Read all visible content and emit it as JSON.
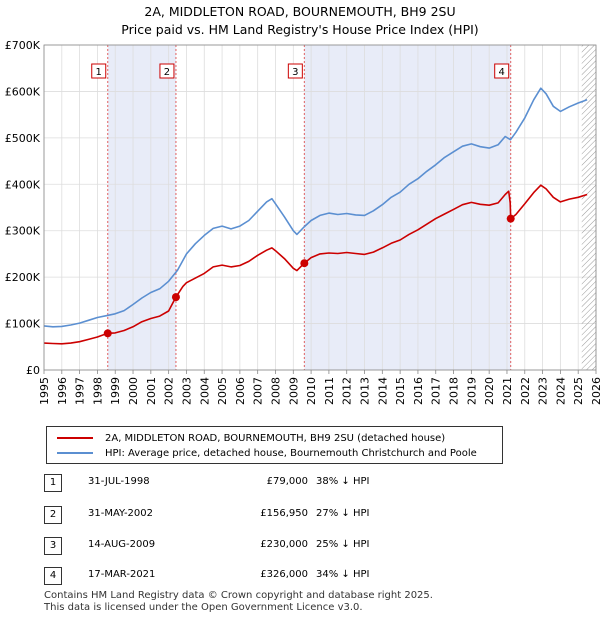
{
  "title_line1": "2A, MIDDLETON ROAD, BOURNEMOUTH, BH9 2SU",
  "title_line2": "Price paid vs. HM Land Registry's House Price Index (HPI)",
  "chart_data": {
    "type": "line",
    "xlim": [
      1995,
      2026
    ],
    "ylim": [
      0,
      700000
    ],
    "yticks": [
      {
        "value": 0,
        "label": "£0"
      },
      {
        "value": 100000,
        "label": "£100K"
      },
      {
        "value": 200000,
        "label": "£200K"
      },
      {
        "value": 300000,
        "label": "£300K"
      },
      {
        "value": 400000,
        "label": "£400K"
      },
      {
        "value": 500000,
        "label": "£500K"
      },
      {
        "value": 600000,
        "label": "£600K"
      },
      {
        "value": 700000,
        "label": "£700K"
      }
    ],
    "xticks": [
      "1995",
      "1996",
      "1997",
      "1998",
      "1999",
      "2000",
      "2001",
      "2002",
      "2003",
      "2004",
      "2005",
      "2006",
      "2007",
      "2008",
      "2009",
      "2010",
      "2011",
      "2012",
      "2013",
      "2014",
      "2015",
      "2016",
      "2017",
      "2018",
      "2019",
      "2020",
      "2021",
      "2022",
      "2023",
      "2024",
      "2025",
      "2026"
    ],
    "grid": true,
    "hatched_from": 2025.2,
    "shaded_ranges": [
      [
        1998.58,
        2002.41
      ],
      [
        2009.62,
        2021.21
      ]
    ],
    "series": [
      {
        "name": "2A, MIDDLETON ROAD, BOURNEMOUTH, BH9 2SU (detached house)",
        "color": "#cc0000",
        "points": [
          [
            1995,
            58000
          ],
          [
            1995.5,
            57000
          ],
          [
            1996,
            56500
          ],
          [
            1996.5,
            58000
          ],
          [
            1997,
            61000
          ],
          [
            1997.5,
            66000
          ],
          [
            1998,
            71000
          ],
          [
            1998.58,
            79000
          ],
          [
            1999,
            80000
          ],
          [
            1999.5,
            85000
          ],
          [
            2000,
            93000
          ],
          [
            2000.5,
            104000
          ],
          [
            2001,
            111000
          ],
          [
            2001.5,
            116000
          ],
          [
            2002,
            127000
          ],
          [
            2002.41,
            156950
          ],
          [
            2002.8,
            180000
          ],
          [
            2003,
            188000
          ],
          [
            2003.5,
            198000
          ],
          [
            2004,
            208000
          ],
          [
            2004.5,
            222000
          ],
          [
            2005,
            226000
          ],
          [
            2005.5,
            222000
          ],
          [
            2006,
            225000
          ],
          [
            2006.5,
            234000
          ],
          [
            2007,
            247000
          ],
          [
            2007.5,
            258000
          ],
          [
            2007.8,
            263000
          ],
          [
            2008,
            257000
          ],
          [
            2008.5,
            240000
          ],
          [
            2009,
            219000
          ],
          [
            2009.2,
            214000
          ],
          [
            2009.62,
            230000
          ],
          [
            2010,
            242000
          ],
          [
            2010.5,
            250000
          ],
          [
            2011,
            252000
          ],
          [
            2011.5,
            251000
          ],
          [
            2012,
            253000
          ],
          [
            2012.5,
            251000
          ],
          [
            2013,
            249000
          ],
          [
            2013.5,
            254000
          ],
          [
            2014,
            263000
          ],
          [
            2014.5,
            273000
          ],
          [
            2015,
            280000
          ],
          [
            2015.5,
            292000
          ],
          [
            2016,
            302000
          ],
          [
            2016.5,
            314000
          ],
          [
            2017,
            326000
          ],
          [
            2017.5,
            336000
          ],
          [
            2018,
            346000
          ],
          [
            2018.5,
            356000
          ],
          [
            2019,
            361000
          ],
          [
            2019.5,
            357000
          ],
          [
            2020,
            355000
          ],
          [
            2020.5,
            360000
          ],
          [
            2020.9,
            378000
          ],
          [
            2021.1,
            385000
          ],
          [
            2021.18,
            360000
          ],
          [
            2021.21,
            326000
          ],
          [
            2021.5,
            335000
          ],
          [
            2022,
            358000
          ],
          [
            2022.5,
            382000
          ],
          [
            2022.9,
            398000
          ],
          [
            2023.2,
            390000
          ],
          [
            2023.6,
            372000
          ],
          [
            2024,
            362000
          ],
          [
            2024.5,
            368000
          ],
          [
            2025,
            372000
          ],
          [
            2025.5,
            378000
          ]
        ]
      },
      {
        "name": "HPI: Average price, detached house, Bournemouth Christchurch and Poole",
        "color": "#5b8fd1",
        "points": [
          [
            1995,
            95000
          ],
          [
            1995.5,
            93000
          ],
          [
            1996,
            94000
          ],
          [
            1996.5,
            97000
          ],
          [
            1997,
            101000
          ],
          [
            1997.5,
            107000
          ],
          [
            1998,
            113000
          ],
          [
            1998.5,
            117000
          ],
          [
            1999,
            121000
          ],
          [
            1999.5,
            128000
          ],
          [
            2000,
            141000
          ],
          [
            2000.5,
            155000
          ],
          [
            2001,
            167000
          ],
          [
            2001.5,
            175000
          ],
          [
            2002,
            191000
          ],
          [
            2002.5,
            215000
          ],
          [
            2003,
            250000
          ],
          [
            2003.5,
            272000
          ],
          [
            2004,
            290000
          ],
          [
            2004.5,
            305000
          ],
          [
            2005,
            310000
          ],
          [
            2005.5,
            304000
          ],
          [
            2006,
            310000
          ],
          [
            2006.5,
            322000
          ],
          [
            2007,
            342000
          ],
          [
            2007.5,
            362000
          ],
          [
            2007.8,
            369000
          ],
          [
            2008,
            358000
          ],
          [
            2008.5,
            330000
          ],
          [
            2009,
            300000
          ],
          [
            2009.2,
            292000
          ],
          [
            2009.6,
            308000
          ],
          [
            2010,
            322000
          ],
          [
            2010.5,
            333000
          ],
          [
            2011,
            338000
          ],
          [
            2011.5,
            335000
          ],
          [
            2012,
            337000
          ],
          [
            2012.5,
            334000
          ],
          [
            2013,
            333000
          ],
          [
            2013.5,
            343000
          ],
          [
            2014,
            356000
          ],
          [
            2014.5,
            372000
          ],
          [
            2015,
            383000
          ],
          [
            2015.5,
            400000
          ],
          [
            2016,
            412000
          ],
          [
            2016.5,
            428000
          ],
          [
            2017,
            442000
          ],
          [
            2017.5,
            458000
          ],
          [
            2018,
            470000
          ],
          [
            2018.5,
            482000
          ],
          [
            2019,
            487000
          ],
          [
            2019.5,
            481000
          ],
          [
            2020,
            478000
          ],
          [
            2020.5,
            485000
          ],
          [
            2020.9,
            503000
          ],
          [
            2021.2,
            496000
          ],
          [
            2021.5,
            512000
          ],
          [
            2022,
            543000
          ],
          [
            2022.5,
            582000
          ],
          [
            2022.9,
            607000
          ],
          [
            2023.2,
            595000
          ],
          [
            2023.6,
            568000
          ],
          [
            2024,
            557000
          ],
          [
            2024.5,
            567000
          ],
          [
            2025,
            575000
          ],
          [
            2025.5,
            582000
          ]
        ]
      }
    ],
    "sales": [
      {
        "id": "1",
        "x": 1998.58,
        "y": 79000
      },
      {
        "id": "2",
        "x": 2002.41,
        "y": 156950
      },
      {
        "id": "3",
        "x": 2009.62,
        "y": 230000
      },
      {
        "id": "4",
        "x": 2021.21,
        "y": 326000
      }
    ]
  },
  "legend": [
    {
      "label": "2A, MIDDLETON ROAD, BOURNEMOUTH, BH9 2SU (detached house)",
      "color": "#cc0000"
    },
    {
      "label": "HPI: Average price, detached house, Bournemouth Christchurch and Poole",
      "color": "#5b8fd1"
    }
  ],
  "table": [
    {
      "num": "1",
      "date": "31-JUL-1998",
      "price": "£79,000",
      "hpi": "38% ↓ HPI"
    },
    {
      "num": "2",
      "date": "31-MAY-2002",
      "price": "£156,950",
      "hpi": "27% ↓ HPI"
    },
    {
      "num": "3",
      "date": "14-AUG-2009",
      "price": "£230,000",
      "hpi": "25% ↓ HPI"
    },
    {
      "num": "4",
      "date": "17-MAR-2021",
      "price": "£326,000",
      "hpi": "34% ↓ HPI"
    }
  ],
  "footer_line1": "Contains HM Land Registry data © Crown copyright and database right 2025.",
  "footer_line2": "This data is licensed under the Open Government Licence v3.0."
}
